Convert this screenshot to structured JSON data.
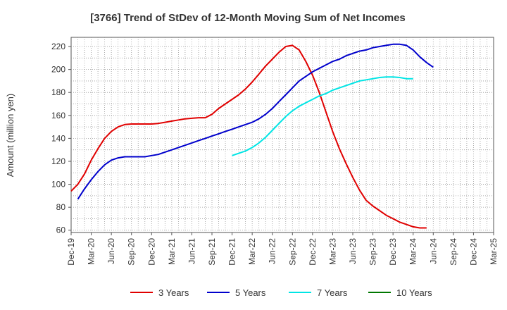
{
  "chart_data": {
    "type": "line",
    "title": "[3766]  Trend of StDev of 12-Month Moving Sum of Net Incomes",
    "xlabel": "",
    "ylabel": "Amount (million yen)",
    "ylim": [
      58,
      228
    ],
    "yticks": [
      60,
      80,
      100,
      120,
      140,
      160,
      180,
      200,
      220
    ],
    "x_tick_labels": [
      "Dec-19",
      "Mar-20",
      "Jun-20",
      "Sep-20",
      "Dec-20",
      "Mar-21",
      "Jun-21",
      "Sep-21",
      "Dec-21",
      "Mar-22",
      "Jun-22",
      "Sep-22",
      "Dec-22",
      "Mar-23",
      "Jun-23",
      "Sep-23",
      "Dec-23",
      "Mar-24",
      "Jun-24",
      "Sep-24",
      "Dec-24",
      "Mar-25"
    ],
    "grid": true,
    "legend_position": "bottom",
    "series": [
      {
        "name": "3 Years",
        "color": "#e00000",
        "start_index": 0,
        "values": [
          94,
          100,
          109,
          121,
          131,
          140,
          146,
          150,
          152,
          152.5,
          152.5,
          152.5,
          152.5,
          153,
          154,
          155,
          156,
          157,
          157.5,
          158,
          158,
          161,
          166,
          170,
          174,
          178,
          183,
          189,
          196,
          203,
          209,
          215,
          220,
          221,
          217,
          207,
          195,
          180,
          163,
          146,
          131,
          118,
          106,
          95,
          86,
          81,
          77,
          73,
          70,
          67,
          65,
          63,
          62,
          62
        ]
      },
      {
        "name": "5 Years",
        "color": "#0000cc",
        "start_index": 1,
        "values": [
          87,
          96,
          104,
          111,
          117,
          121,
          123,
          124,
          124,
          124,
          124,
          125,
          126,
          128,
          130,
          132,
          134,
          136,
          138,
          140,
          142,
          144,
          146,
          148,
          150,
          152,
          154,
          157,
          161,
          166,
          172,
          178,
          184,
          190,
          194,
          198,
          201,
          204,
          207,
          209,
          212,
          214,
          216,
          217,
          219,
          220,
          221,
          222,
          222,
          221,
          217,
          211,
          206,
          202
        ]
      },
      {
        "name": "7 Years",
        "color": "#00e5e5",
        "start_index": 24,
        "values": [
          125,
          127,
          129,
          132,
          136,
          141,
          147,
          153,
          159,
          164,
          168,
          171,
          174,
          177,
          179,
          182,
          184,
          186,
          188,
          190,
          191,
          192,
          193,
          193.5,
          193.5,
          193,
          192,
          192
        ]
      },
      {
        "name": "10 Years",
        "color": "#007700",
        "start_index": 0,
        "values": []
      }
    ]
  }
}
